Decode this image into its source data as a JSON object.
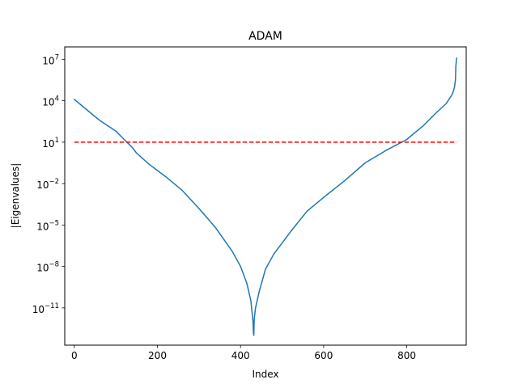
{
  "chart_data": {
    "type": "line",
    "title": "ADAM",
    "xlabel": "Index",
    "ylabel": "|Eigenvalues|",
    "xlim": [
      -23,
      943
    ],
    "ylim_log10": [
      -13.7,
      7.9
    ],
    "yscale": "log",
    "grid": false,
    "x_ticks": [
      0,
      200,
      400,
      600,
      800
    ],
    "y_ticks": [
      {
        "base": "10",
        "exp": "7",
        "log10": 7
      },
      {
        "base": "10",
        "exp": "4",
        "log10": 4
      },
      {
        "base": "10",
        "exp": "1",
        "log10": 1
      },
      {
        "base": "10",
        "exp": "−2",
        "log10": -2
      },
      {
        "base": "10",
        "exp": "−5",
        "log10": -5
      },
      {
        "base": "10",
        "exp": "−8",
        "log10": -8
      },
      {
        "base": "10",
        "exp": "−11",
        "log10": -11
      }
    ],
    "series": [
      {
        "color": "#1f77b4",
        "style": "solid",
        "x_log10y": [
          [
            0,
            4.1
          ],
          [
            20,
            3.6
          ],
          [
            40,
            3.1
          ],
          [
            60,
            2.6
          ],
          [
            80,
            2.2
          ],
          [
            100,
            1.8
          ],
          [
            120,
            1.2
          ],
          [
            140,
            0.6
          ],
          [
            150,
            0.2
          ],
          [
            180,
            -0.6
          ],
          [
            220,
            -1.5
          ],
          [
            260,
            -2.5
          ],
          [
            300,
            -3.8
          ],
          [
            340,
            -5.2
          ],
          [
            380,
            -6.9
          ],
          [
            400,
            -8.0
          ],
          [
            415,
            -9.2
          ],
          [
            425,
            -10.5
          ],
          [
            430,
            -12.0
          ],
          [
            431,
            -12.8
          ],
          [
            432,
            -13.0
          ],
          [
            433,
            -11.8
          ],
          [
            436,
            -11.0
          ],
          [
            445,
            -9.8
          ],
          [
            460,
            -8.2
          ],
          [
            480,
            -7.1
          ],
          [
            520,
            -5.5
          ],
          [
            560,
            -4.0
          ],
          [
            600,
            -3.0
          ],
          [
            650,
            -1.8
          ],
          [
            700,
            -0.5
          ],
          [
            750,
            0.4
          ],
          [
            800,
            1.2
          ],
          [
            840,
            2.2
          ],
          [
            870,
            3.1
          ],
          [
            895,
            3.8
          ],
          [
            910,
            4.5
          ],
          [
            915,
            5.0
          ],
          [
            917,
            5.5
          ],
          [
            918,
            6.5
          ],
          [
            920,
            7.1
          ]
        ]
      },
      {
        "color": "#ff0000",
        "style": "dashed",
        "x_log10y": [
          [
            0,
            1.0
          ],
          [
            920,
            1.0
          ]
        ]
      }
    ]
  }
}
